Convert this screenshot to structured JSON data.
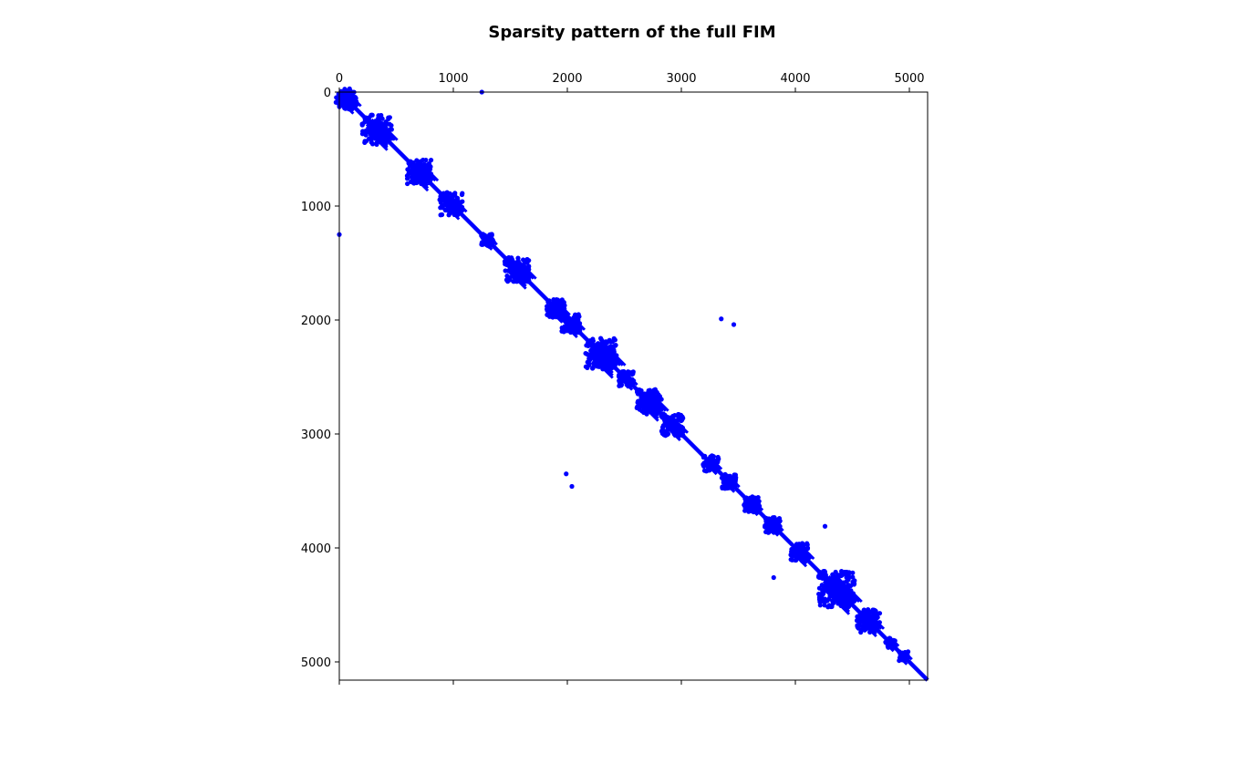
{
  "chart_data": {
    "type": "scatter",
    "title": "Sparsity pattern of the full FIM",
    "xlabel": "",
    "ylabel": "",
    "xlim": [
      0,
      5160
    ],
    "ylim": [
      5160,
      0
    ],
    "x_axis_position": "top",
    "y_axis_inverted": true,
    "grid": false,
    "legend": "none",
    "marker_color": "#0000ff",
    "x_ticks": [
      0,
      1000,
      2000,
      3000,
      4000,
      5000
    ],
    "x_tick_labels": [
      "0",
      "1000",
      "2000",
      "3000",
      "4000",
      "5000"
    ],
    "y_ticks": [
      0,
      1000,
      2000,
      3000,
      4000,
      5000
    ],
    "y_tick_labels": [
      "0",
      "1000",
      "2000",
      "3000",
      "4000",
      "5000"
    ],
    "diagonal": {
      "from": [
        0,
        0
      ],
      "to": [
        5160,
        5160
      ]
    },
    "blocks": [
      {
        "center": 60,
        "size": 180
      },
      {
        "center": 330,
        "size": 260
      },
      {
        "center": 700,
        "size": 220
      },
      {
        "center": 980,
        "size": 200
      },
      {
        "center": 1300,
        "size": 110
      },
      {
        "center": 1560,
        "size": 220
      },
      {
        "center": 1900,
        "size": 160
      },
      {
        "center": 2030,
        "size": 160
      },
      {
        "center": 2300,
        "size": 280
      },
      {
        "center": 2520,
        "size": 140
      },
      {
        "center": 2720,
        "size": 220
      },
      {
        "center": 2920,
        "size": 200
      },
      {
        "center": 3260,
        "size": 140
      },
      {
        "center": 3420,
        "size": 130
      },
      {
        "center": 3620,
        "size": 140
      },
      {
        "center": 3800,
        "size": 140
      },
      {
        "center": 4040,
        "size": 160
      },
      {
        "center": 4360,
        "size": 320
      },
      {
        "center": 4640,
        "size": 200
      },
      {
        "center": 4830,
        "size": 90
      },
      {
        "center": 4950,
        "size": 80
      }
    ],
    "points": [
      [
        1250,
        0
      ],
      [
        0,
        1250
      ],
      [
        3350,
        1990
      ],
      [
        3460,
        2040
      ],
      [
        1990,
        3350
      ],
      [
        2040,
        3460
      ],
      [
        4260,
        3810
      ],
      [
        3810,
        4260
      ]
    ]
  }
}
